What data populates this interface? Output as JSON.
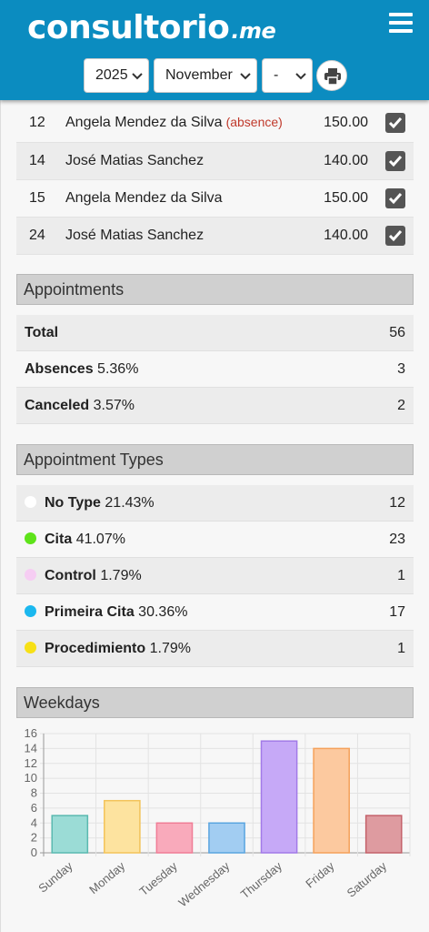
{
  "header": {
    "logo_main": "consultorio",
    "logo_suffix": ".me",
    "year_select": "2025",
    "month_select": "November",
    "day_select": "-"
  },
  "payments": [
    {
      "day": "12",
      "name": "Angela Mendez da Silva",
      "note": "(absence)",
      "amount": "150.00",
      "checked": true
    },
    {
      "day": "14",
      "name": "José Matias Sanchez",
      "note": "",
      "amount": "140.00",
      "checked": true
    },
    {
      "day": "15",
      "name": "Angela Mendez da Silva",
      "note": "",
      "amount": "150.00",
      "checked": true
    },
    {
      "day": "24",
      "name": "José Matias Sanchez",
      "note": "",
      "amount": "140.00",
      "checked": true
    }
  ],
  "appointments": {
    "title": "Appointments",
    "rows": [
      {
        "label": "Total",
        "pct": "",
        "count": "56"
      },
      {
        "label": "Absences",
        "pct": "5.36%",
        "count": "3"
      },
      {
        "label": "Canceled",
        "pct": "3.57%",
        "count": "2"
      }
    ]
  },
  "types": {
    "title": "Appointment Types",
    "rows": [
      {
        "label": "No Type",
        "pct": "21.43%",
        "count": "12",
        "color": "#ffffff"
      },
      {
        "label": "Cita",
        "pct": "41.07%",
        "count": "23",
        "color": "#5ee31a"
      },
      {
        "label": "Control",
        "pct": "1.79%",
        "count": "1",
        "color": "#f6cdf3"
      },
      {
        "label": "Primeira Cita",
        "pct": "30.36%",
        "count": "17",
        "color": "#1bb8ef"
      },
      {
        "label": "Procedimiento",
        "pct": "1.79%",
        "count": "1",
        "color": "#f7e016"
      }
    ]
  },
  "weekdays": {
    "title": "Weekdays"
  },
  "chart_data": {
    "type": "bar",
    "categories": [
      "Sunday",
      "Monday",
      "Tuesday",
      "Wednesday",
      "Thursday",
      "Friday",
      "Saturday"
    ],
    "values": [
      5,
      7,
      4,
      4,
      15,
      14,
      5
    ],
    "colors": [
      "#9bdcd6",
      "#fde39f",
      "#f9aabb",
      "#a2cdf2",
      "#c6a9f7",
      "#fcc99f",
      "#de9ba0"
    ],
    "borders": [
      "#5ab9b0",
      "#f3c35a",
      "#f07d96",
      "#5aa5e0",
      "#a27ae8",
      "#f5a15a",
      "#c4626a"
    ],
    "yticks": [
      "0",
      "2",
      "4",
      "6",
      "8",
      "10",
      "12",
      "14",
      "16"
    ],
    "ylim": [
      0,
      16
    ],
    "grid": true
  }
}
